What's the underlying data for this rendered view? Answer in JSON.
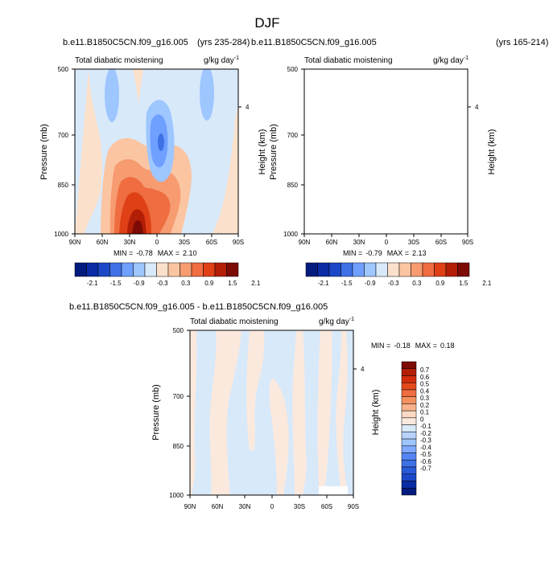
{
  "page_title": "DJF",
  "colors": {
    "neg": [
      "#9ec6ff",
      "#6f9fff",
      "#3f71e6",
      "#1c48c8",
      "#0a2ba3",
      "#031b7c"
    ],
    "pos": [
      "#fbe1cc",
      "#fbc5a2",
      "#f79b71",
      "#ef6d40",
      "#df4016",
      "#b31e07",
      "#7b0b04"
    ],
    "bg": "#d8e9fa"
  },
  "chart_data": [
    {
      "id": "top-left",
      "type": "contour",
      "case_label": "b.e11.B1850C5CN.f09_g16.005",
      "years_label": "(yrs 235-284)",
      "variable_label": "Total diabatic moistening",
      "units_label": "g/kg day",
      "units_sup": "-1",
      "ylabel": "Pressure (mb)",
      "ylabel_right": "Height (km)",
      "yticks": [
        "500",
        "700",
        "850",
        "1000"
      ],
      "ytick_values": [
        500,
        700,
        850,
        1000
      ],
      "right_ticks": [
        "4"
      ],
      "xticks": [
        "90N",
        "60N",
        "30N",
        "0",
        "30S",
        "60S",
        "90S"
      ],
      "xtick_values": [
        90,
        60,
        30,
        0,
        -30,
        -60,
        -90
      ],
      "xlim": [
        90,
        -90
      ],
      "ylim": [
        500,
        1000
      ],
      "stats": {
        "min_label": "MIN =",
        "min": "-0.78",
        "max_label": "MAX =",
        "max": "2.10"
      },
      "colorbar_labels": [
        "-2.1",
        "-1.5",
        "-0.9",
        "-0.3",
        "0.3",
        "0.9",
        "1.5",
        "2.1"
      ],
      "colorbar_levels": 14
    },
    {
      "id": "top-right",
      "type": "contour",
      "case_label": "b.e11.B1850C5CN.f09_g16.005",
      "years_label": "(yrs 165-214)",
      "variable_label": "Total diabatic moistening",
      "units_label": "g/kg day",
      "units_sup": "-1",
      "ylabel": "Pressure (mb)",
      "ylabel_right": "Height (km)",
      "yticks": [
        "500",
        "700",
        "850",
        "1000"
      ],
      "ytick_values": [
        500,
        700,
        850,
        1000
      ],
      "right_ticks": [
        "4"
      ],
      "xticks": [
        "90N",
        "60N",
        "30N",
        "0",
        "30S",
        "60S",
        "90S"
      ],
      "xtick_values": [
        90,
        60,
        30,
        0,
        -30,
        -60,
        -90
      ],
      "xlim": [
        90,
        -90
      ],
      "ylim": [
        500,
        1000
      ],
      "stats": {
        "min_label": "MIN =",
        "min": "-0.79",
        "max_label": "MAX =",
        "max": "2.13"
      },
      "colorbar_labels": [
        "-2.1",
        "-1.5",
        "-0.9",
        "-0.3",
        "0.3",
        "0.9",
        "1.5",
        "2.1"
      ],
      "colorbar_levels": 14
    },
    {
      "id": "difference",
      "type": "contour",
      "case_label": "b.e11.B1850C5CN.f09_g16.005 - b.e11.B1850C5CN.f09_g16.005",
      "variable_label": "Total diabatic moistening",
      "units_label": "g/kg day",
      "units_sup": "-1",
      "ylabel": "Pressure (mb)",
      "ylabel_right": "Height (km)",
      "yticks": [
        "500",
        "700",
        "850",
        "1000"
      ],
      "ytick_values": [
        500,
        700,
        850,
        1000
      ],
      "right_ticks": [
        "4"
      ],
      "xticks": [
        "90N",
        "60N",
        "30N",
        "0",
        "30S",
        "60S",
        "90S"
      ],
      "xtick_values": [
        90,
        60,
        30,
        0,
        -30,
        -60,
        -90
      ],
      "xlim": [
        90,
        -90
      ],
      "ylim": [
        500,
        1000
      ],
      "stats": {
        "min_label": "MIN =",
        "min": "-0.18",
        "max_label": "MAX =",
        "max": "0.18"
      },
      "colorbar_labels": [
        "0.7",
        "0.6",
        "0.5",
        "0.4",
        "0.3",
        "0.2",
        "0.1",
        "0",
        "-0.1",
        "-0.2",
        "-0.3",
        "-0.4",
        "-0.5",
        "-0.6",
        "-0.7"
      ],
      "colorbar_colors": [
        "#7b0b04",
        "#b31e07",
        "#d32c0c",
        "#e54a1d",
        "#ef6d40",
        "#f5905f",
        "#f9b28b",
        "#fbd9c2",
        "#fbe9de",
        "#d8e9fa",
        "#b7d3fb",
        "#9ec6ff",
        "#7fa9ff",
        "#5584f5",
        "#3f71e6",
        "#2a5bdb",
        "#1c48c8",
        "#0a2ba3",
        "#031b7c"
      ]
    }
  ]
}
